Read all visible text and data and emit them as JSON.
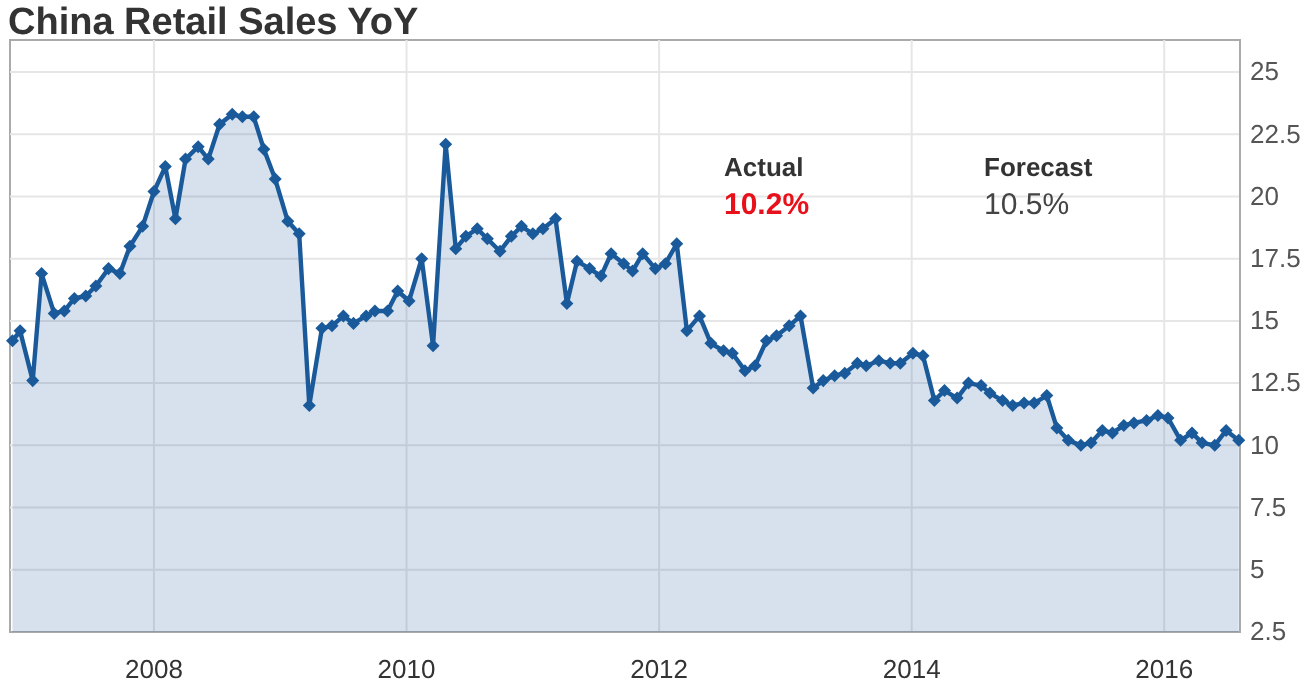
{
  "chart_data": {
    "type": "area",
    "title": "China Retail Sales YoY",
    "x": [
      2006.88,
      2006.94,
      2007.04,
      2007.11,
      2007.21,
      2007.29,
      2007.37,
      2007.46,
      2007.54,
      2007.64,
      2007.73,
      2007.81,
      2007.91,
      2008.0,
      2008.09,
      2008.17,
      2008.25,
      2008.35,
      2008.43,
      2008.52,
      2008.62,
      2008.7,
      2008.79,
      2008.87,
      2008.96,
      2009.06,
      2009.15,
      2009.23,
      2009.33,
      2009.41,
      2009.5,
      2009.58,
      2009.68,
      2009.75,
      2009.85,
      2009.93,
      2010.02,
      2010.12,
      2010.21,
      2010.31,
      2010.39,
      2010.47,
      2010.56,
      2010.64,
      2010.74,
      2010.83,
      2010.91,
      2011.0,
      2011.08,
      2011.18,
      2011.27,
      2011.35,
      2011.45,
      2011.54,
      2011.62,
      2011.72,
      2011.79,
      2011.87,
      2011.97,
      2012.05,
      2012.14,
      2012.22,
      2012.32,
      2012.41,
      2012.51,
      2012.58,
      2012.68,
      2012.76,
      2012.85,
      2012.93,
      2013.03,
      2013.12,
      2013.22,
      2013.3,
      2013.39,
      2013.47,
      2013.57,
      2013.64,
      2013.74,
      2013.83,
      2013.91,
      2014.01,
      2014.09,
      2014.18,
      2014.26,
      2014.36,
      2014.45,
      2014.55,
      2014.62,
      2014.72,
      2014.8,
      2014.89,
      2014.97,
      2015.07,
      2015.15,
      2015.24,
      2015.34,
      2015.42,
      2015.51,
      2015.59,
      2015.68,
      2015.76,
      2015.86,
      2015.95,
      2016.03,
      2016.13,
      2016.22,
      2016.3,
      2016.4,
      2016.49,
      2016.59
    ],
    "series": [
      {
        "color": "#1a5a9a",
        "values": [
          14.2,
          14.6,
          12.6,
          16.9,
          15.3,
          15.4,
          15.9,
          16.0,
          16.4,
          17.1,
          16.9,
          18.0,
          18.8,
          20.2,
          21.2,
          19.1,
          21.5,
          22.0,
          21.5,
          22.9,
          23.3,
          23.2,
          23.2,
          21.9,
          20.7,
          19.0,
          18.5,
          11.6,
          14.7,
          14.8,
          15.2,
          14.9,
          15.2,
          15.4,
          15.4,
          16.2,
          15.8,
          17.5,
          14.0,
          22.1,
          17.9,
          18.4,
          18.7,
          18.3,
          17.8,
          18.4,
          18.8,
          18.5,
          18.7,
          19.1,
          15.7,
          17.4,
          17.1,
          16.8,
          17.7,
          17.3,
          17.0,
          17.7,
          17.1,
          17.3,
          18.1,
          14.6,
          15.2,
          14.1,
          13.8,
          13.7,
          13.0,
          13.2,
          14.2,
          14.4,
          14.8,
          15.2,
          12.3,
          12.6,
          12.8,
          12.9,
          13.3,
          13.2,
          13.4,
          13.3,
          13.3,
          13.7,
          13.6,
          11.8,
          12.2,
          11.9,
          12.5,
          12.4,
          12.1,
          11.8,
          11.6,
          11.7,
          11.7,
          12.0,
          10.7,
          10.2,
          10.0,
          10.1,
          10.6,
          10.5,
          10.8,
          10.9,
          11.0,
          11.2,
          11.1,
          10.2,
          10.5,
          10.1,
          10.0,
          10.6,
          10.2
        ]
      }
    ],
    "xlim": [
      2006.86,
      2016.6
    ],
    "xticks": [
      2008,
      2010,
      2012,
      2014,
      2016
    ],
    "ylim": [
      2.5,
      25
    ],
    "yticks": [
      2.5,
      5,
      7.5,
      10,
      12.5,
      15,
      17.5,
      20,
      22.5,
      25
    ],
    "grid": true,
    "marker": "diamond",
    "line_style": "solid",
    "annotations": [
      "Actual",
      "10.2%",
      "Forecast",
      "10.5%"
    ]
  }
}
